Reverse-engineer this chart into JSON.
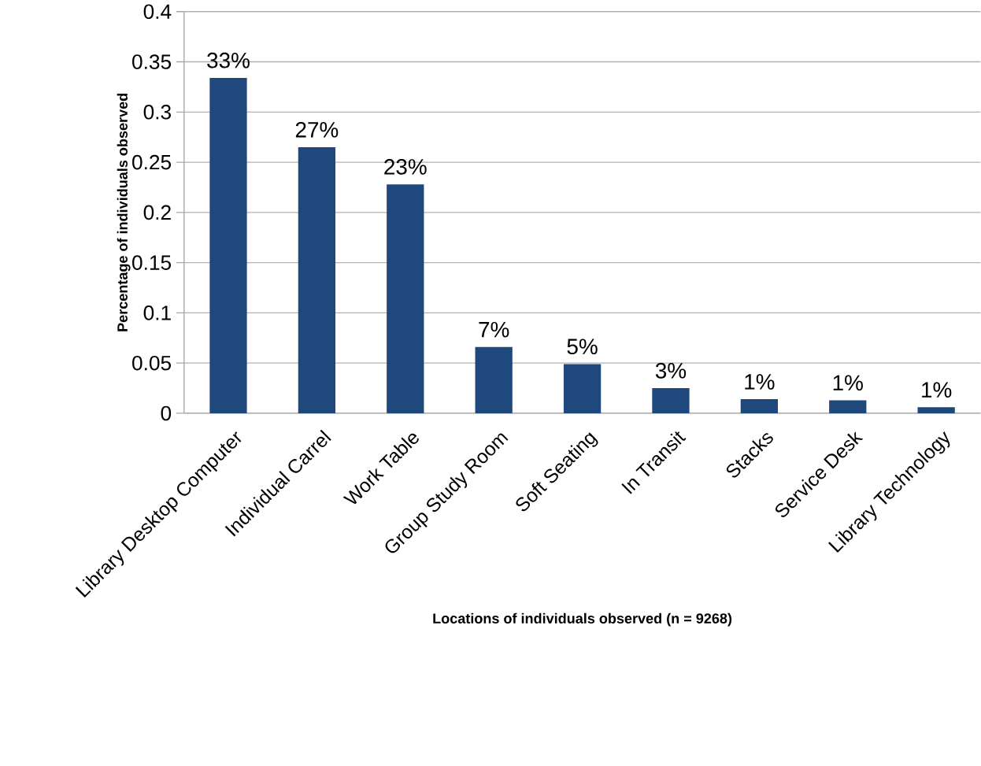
{
  "chart_data": {
    "type": "bar",
    "xlabel": "Locations of individuals observed (n = 9268)",
    "ylabel": "Percentage of individuals observed",
    "categories": [
      "Library Desktop Computer",
      "Individual Carrel",
      "Work Table",
      "Group Study Room",
      "Soft Seating",
      "In Transit",
      "Stacks",
      "Service Desk",
      "Library Technology"
    ],
    "values": [
      0.334,
      0.265,
      0.228,
      0.066,
      0.049,
      0.025,
      0.014,
      0.013,
      0.006
    ],
    "value_labels": [
      "33%",
      "27%",
      "23%",
      "7%",
      "5%",
      "3%",
      "1%",
      "1%",
      "1%"
    ],
    "color": "#1f497d",
    "ylim": [
      0,
      0.4
    ],
    "yticks": [
      0,
      0.05,
      0.1,
      0.15,
      0.2,
      0.25,
      0.3,
      0.35,
      0.4
    ],
    "grid": "y"
  }
}
